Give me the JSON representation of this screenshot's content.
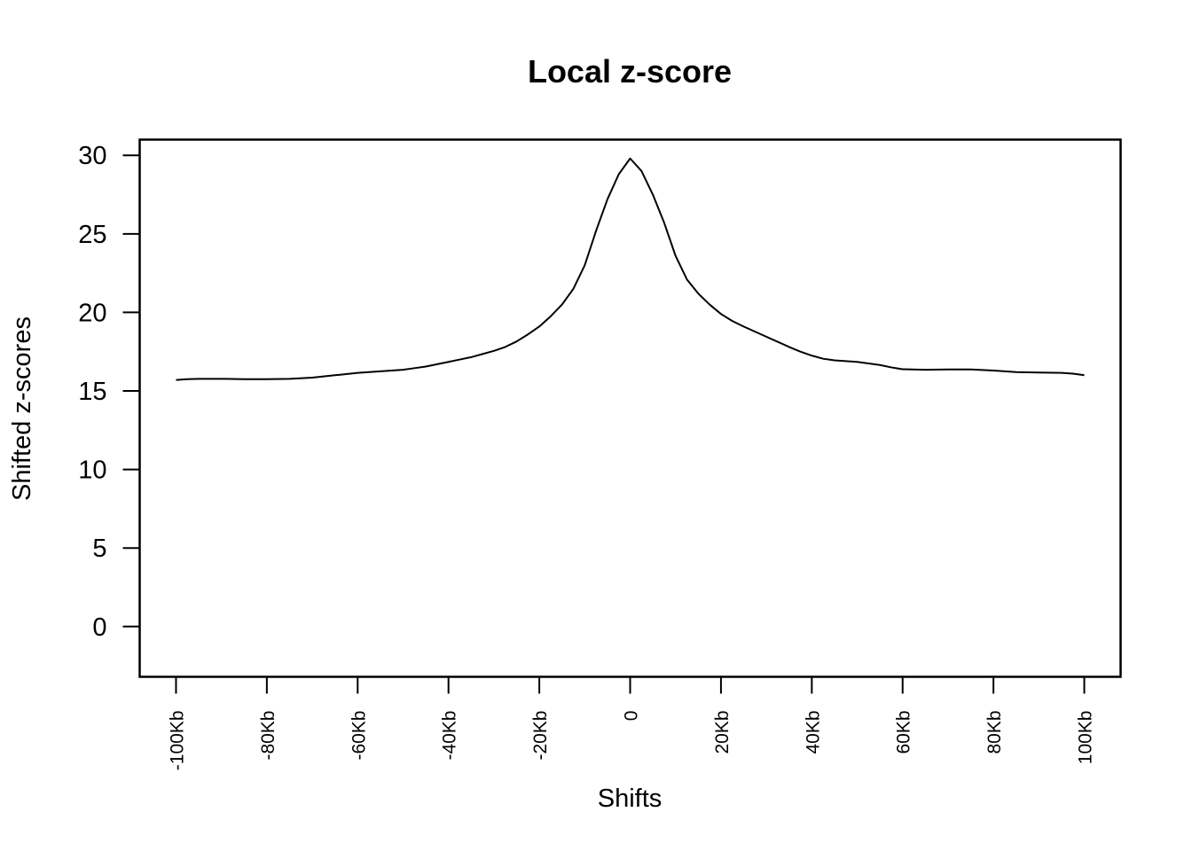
{
  "chart_data": {
    "type": "line",
    "title": "Local z-score",
    "xlabel": "Shifts",
    "ylabel": "Shifted z-scores",
    "xlim": [
      -108,
      108
    ],
    "ylim": [
      -3.2,
      31
    ],
    "x_ticks": [
      -100,
      -80,
      -60,
      -40,
      -20,
      0,
      20,
      40,
      60,
      80,
      100
    ],
    "x_tick_labels": [
      "-100Kb",
      "-80Kb",
      "-60Kb",
      "-40Kb",
      "-20Kb",
      "0",
      "20Kb",
      "40Kb",
      "60Kb",
      "80Kb",
      "100Kb"
    ],
    "y_ticks": [
      0,
      5,
      10,
      15,
      20,
      25,
      30
    ],
    "y_tick_labels": [
      "0",
      "5",
      "10",
      "15",
      "20",
      "25",
      "30"
    ],
    "grid": false,
    "legend": false,
    "line_color": "#000000",
    "series": [
      {
        "x": [
          -100,
          -97.5,
          -95,
          -90,
          -85,
          -80,
          -75,
          -70,
          -65,
          -60,
          -55,
          -50,
          -47.5,
          -45,
          -42.5,
          -40,
          -37.5,
          -35,
          -32.5,
          -30,
          -27.5,
          -25,
          -22.5,
          -20,
          -17.5,
          -15,
          -12.5,
          -10,
          -7.5,
          -5,
          -2.5,
          0,
          2.5,
          5,
          7.5,
          10,
          12.5,
          15,
          17.5,
          20,
          22.5,
          25,
          30,
          35,
          37.5,
          40,
          42.5,
          45,
          50,
          52.5,
          55,
          57.5,
          60,
          65,
          70,
          75,
          80,
          85,
          90,
          95,
          97.5,
          100
        ],
        "y": [
          15.7,
          15.75,
          15.77,
          15.77,
          15.75,
          15.75,
          15.77,
          15.85,
          16.0,
          16.15,
          16.25,
          16.35,
          16.45,
          16.55,
          16.7,
          16.85,
          17.0,
          17.15,
          17.35,
          17.55,
          17.8,
          18.15,
          18.6,
          19.1,
          19.75,
          20.5,
          21.5,
          23.0,
          25.2,
          27.2,
          28.8,
          29.8,
          29.0,
          27.5,
          25.7,
          23.6,
          22.1,
          21.2,
          20.5,
          19.9,
          19.45,
          19.1,
          18.45,
          17.8,
          17.5,
          17.25,
          17.05,
          16.95,
          16.85,
          16.75,
          16.65,
          16.5,
          16.38,
          16.35,
          16.37,
          16.37,
          16.3,
          16.2,
          16.17,
          16.15,
          16.1,
          16.0
        ]
      }
    ]
  }
}
